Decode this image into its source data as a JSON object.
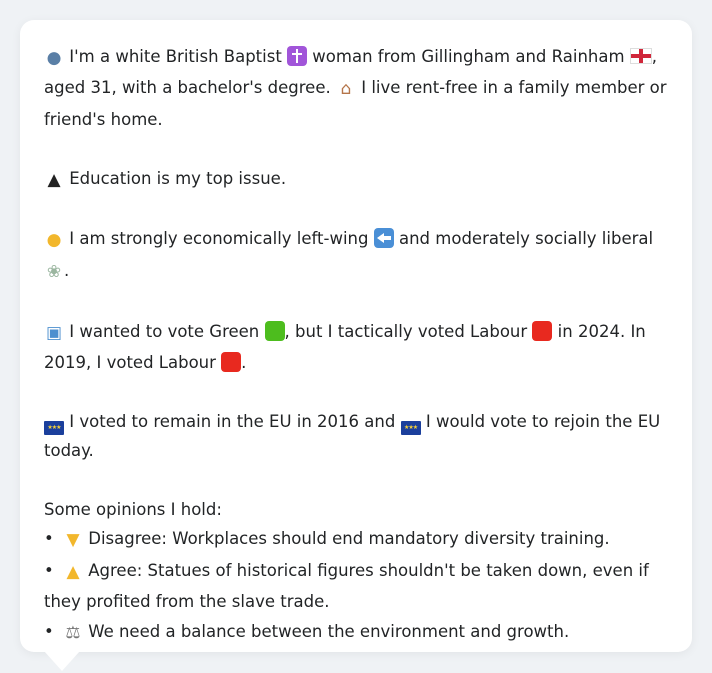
{
  "profile": {
    "intro": {
      "part1": "I'm a white British Baptist",
      "part2": "woman from Gillingham and Rainham",
      "part3": ",",
      "part4": "aged 31, with a bachelor's degree.",
      "part5": "I live rent-free in a family member or friend's home."
    },
    "top_issue": "Education is my top issue.",
    "ideology": {
      "part1": "I am strongly economically left-wing",
      "part2": "and moderately socially liberal",
      "part3": "."
    },
    "vote": {
      "part1": "I wanted to vote Green",
      "part2": ", but I tactically voted Labour",
      "part3": "in 2024. In 2019, I voted Labour",
      "part4": "."
    },
    "eu": {
      "part1": "I voted to remain in the EU in 2016 and",
      "part2": "I would vote to rejoin the EU today."
    },
    "opinions_heading": "Some opinions I hold:",
    "opinions": [
      {
        "bullet": "•",
        "text": "Disagree: Workplaces should end mandatory diversity training."
      },
      {
        "bullet": "•",
        "text": "Agree: Statues of historical figures shouldn't be taken down, even if they profited from the slave trade."
      },
      {
        "bullet": "•",
        "text": "We need a balance between the environment and growth."
      }
    ]
  },
  "icons": {
    "person": "person-silhouette-icon",
    "religion": "latin-cross-icon",
    "region": "england-flag-icon",
    "housing": "house-icon",
    "education": "graduation-cap-icon",
    "thinking": "thinking-face-icon",
    "economic": "left-arrow-icon",
    "social": "dove-icon",
    "ballot": "ballot-box-icon",
    "green_party": "green-square-icon",
    "labour_party": "red-square-icon",
    "eu": "eu-flag-icon",
    "disagree": "thumbs-down-icon",
    "agree": "thumbs-up-icon",
    "balance": "balance-scale-icon"
  },
  "colors": {
    "background": "#eff2f5",
    "card": "#ffffff",
    "text": "#222426",
    "green_party": "#4dbd1e",
    "labour_party": "#e8291f"
  }
}
